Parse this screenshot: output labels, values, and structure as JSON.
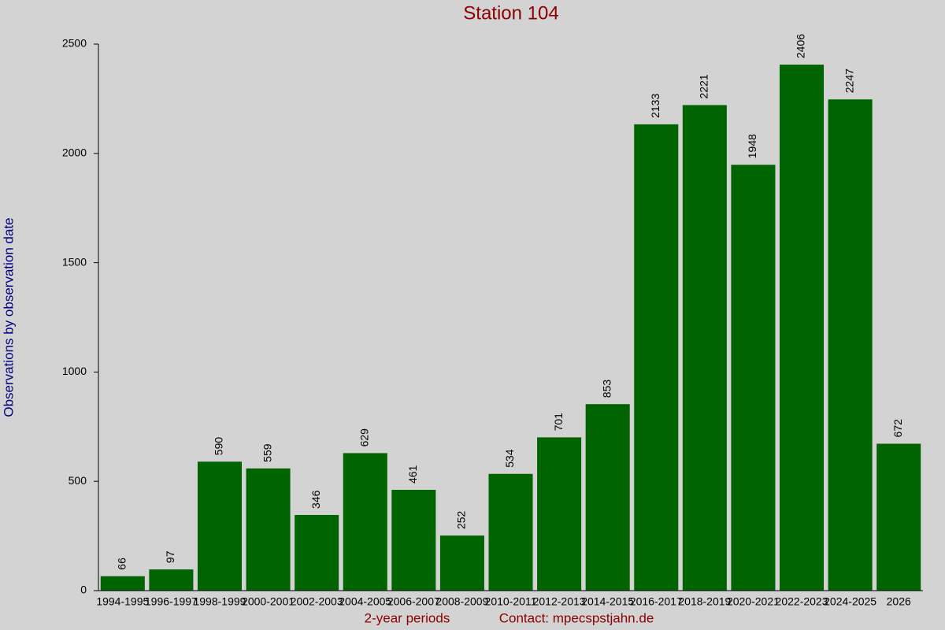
{
  "chart_data": {
    "type": "bar",
    "title": "Station 104",
    "ylabel": "Observations by observation date",
    "xlabel": "2-year periods",
    "annotation": "Contact: mpecspstjahn.de",
    "categories": [
      "1994-1995",
      "1996-1997",
      "1998-1999",
      "2000-2001",
      "2002-2003",
      "2004-2005",
      "2006-2007",
      "2008-2009",
      "2010-2011",
      "2012-2013",
      "2014-2015",
      "2016-2017",
      "2018-2019",
      "2020-2021",
      "2022-2023",
      "2024-2025",
      "2026"
    ],
    "values": [
      66,
      97,
      590,
      559,
      346,
      629,
      461,
      252,
      534,
      701,
      853,
      2133,
      2221,
      1948,
      2406,
      2247,
      672
    ],
    "color": "#006400",
    "ylim": [
      0,
      2500
    ],
    "yticks": [
      0,
      500,
      1000,
      1500,
      2000,
      2500
    ],
    "grid": false
  }
}
